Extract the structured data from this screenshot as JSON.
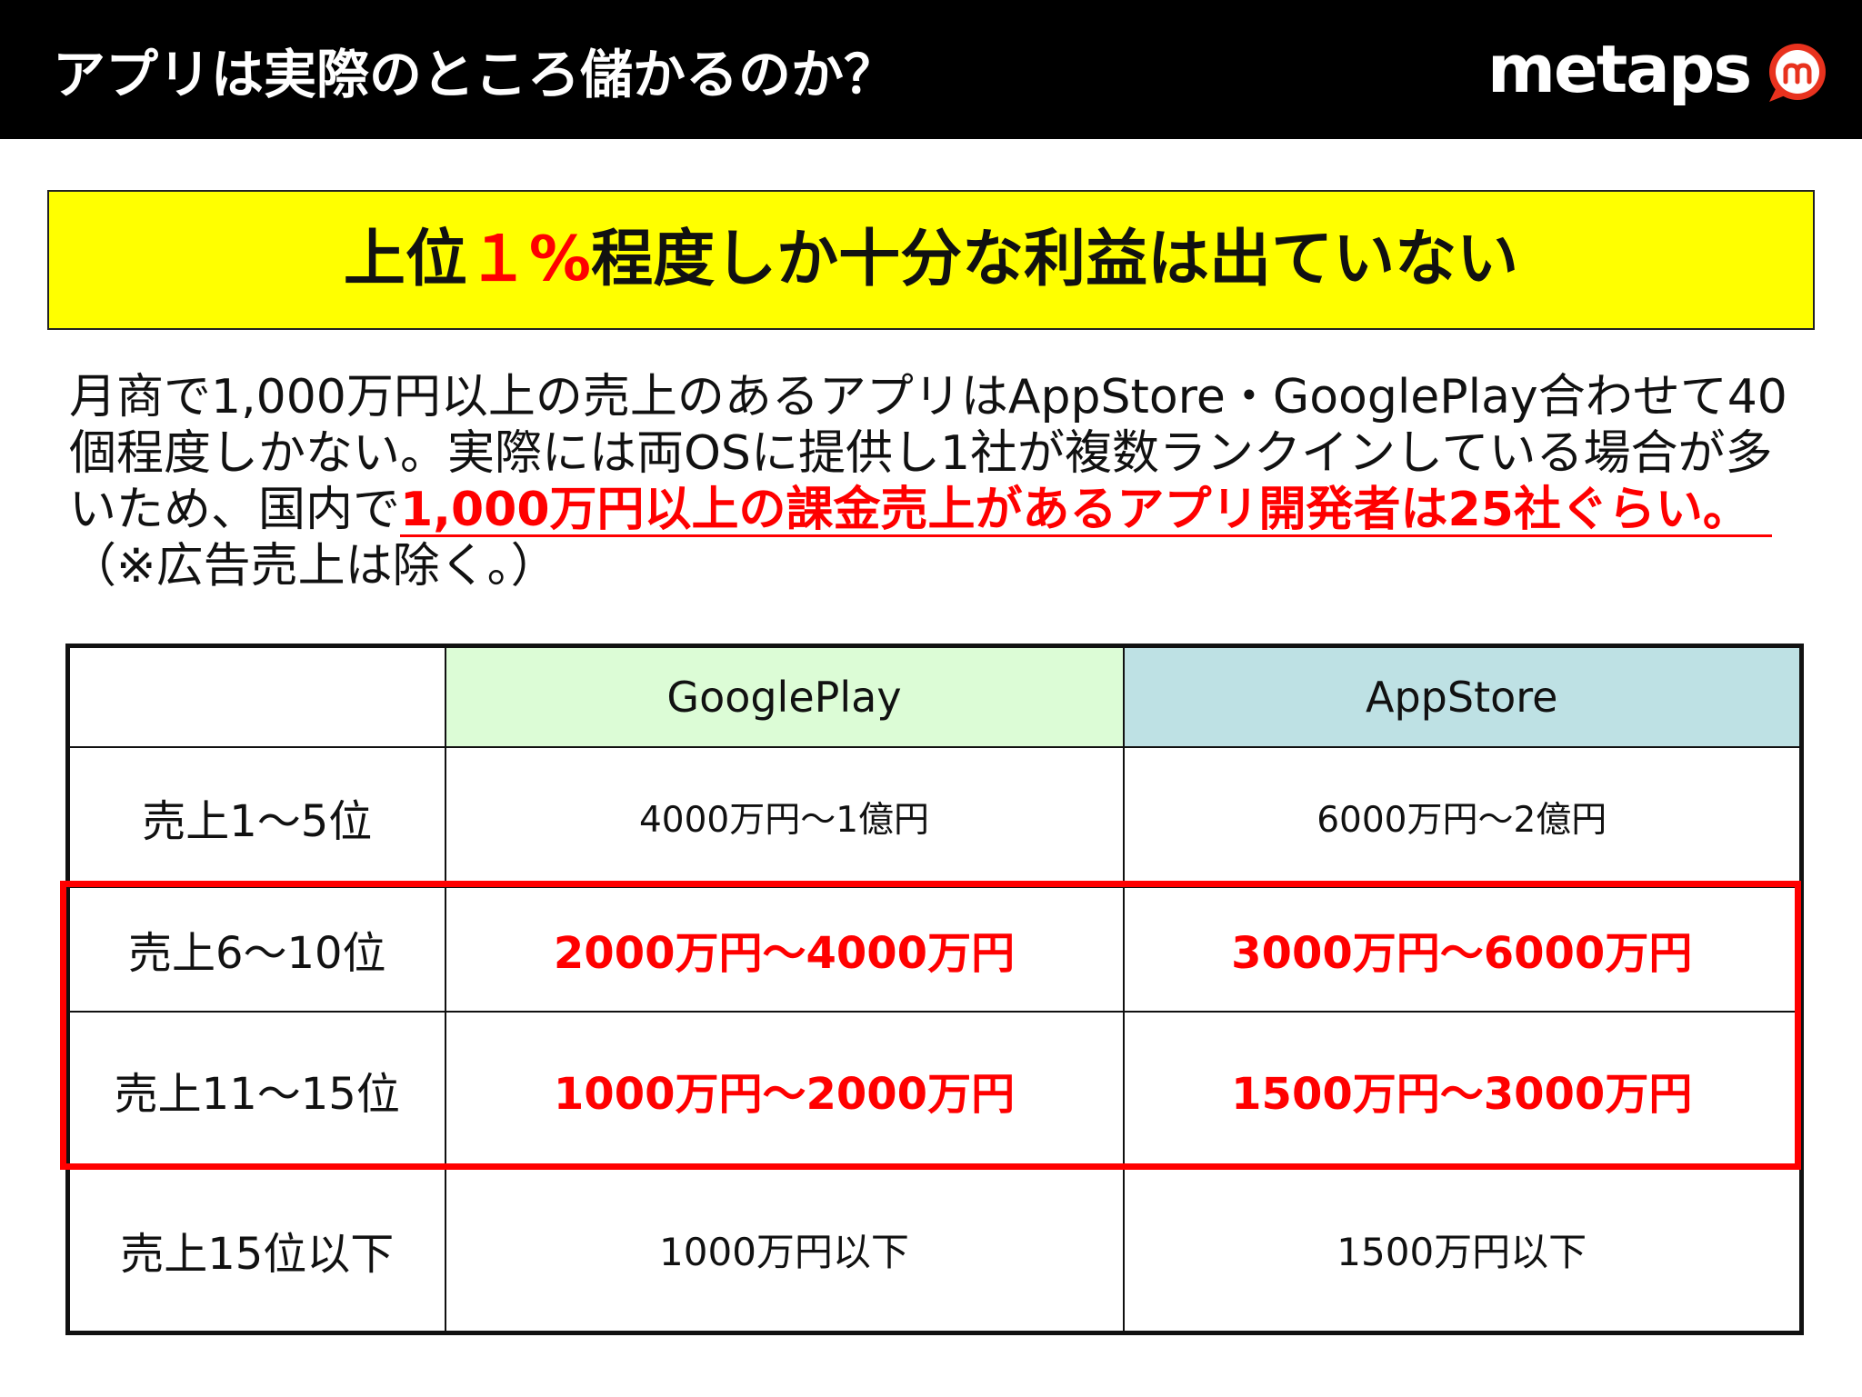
{
  "slide": {
    "title": "アプリは実際のところ儲かるのか？",
    "logo_text": "metaps",
    "logo_icon": "metaps-m-bubble-icon"
  },
  "headline": {
    "before": "上位",
    "highlight": "１%",
    "after": "程度しか十分な利益は出ていない"
  },
  "body": {
    "line1": "月商で1,000万円以上の売上のあるアプリはAppStore・GooglePlay合わせて40",
    "line2": "個程度しかない。実際には両OSに提供し1社が複数ランクインしている場合が多",
    "line3_plain": "いため、国内で",
    "line3_highlight": "1,000万円以上の課金売上があるアプリ開発者は25社ぐらい。",
    "line4": "（※広告売上は除く。）"
  },
  "table": {
    "columns": [
      "GooglePlay",
      "AppStore"
    ],
    "rows": [
      {
        "label": "売上1〜5位",
        "googleplay": "4000万円〜1億円",
        "appstore": "6000万円〜2億円",
        "highlighted": false
      },
      {
        "label": "売上6〜10位",
        "googleplay": "2000万円〜4000万円",
        "appstore": "3000万円〜6000万円",
        "highlighted": true
      },
      {
        "label": "売上11〜15位",
        "googleplay": "1000万円〜2000万円",
        "appstore": "1500万円〜3000万円",
        "highlighted": true
      },
      {
        "label": "売上15位以下",
        "googleplay": "1000万円以下",
        "appstore": "1500万円以下",
        "highlighted": false
      }
    ]
  },
  "colors": {
    "accent": "#ff0000",
    "headline_bg": "#ffff00",
    "googleplay_header": "#dcfcd6",
    "appstore_header": "#bee1e4",
    "header_bar": "#000000"
  }
}
